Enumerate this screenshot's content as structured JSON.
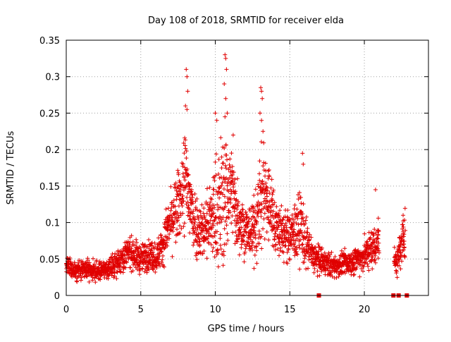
{
  "chart_data": {
    "type": "scatter",
    "title": "Day 108 of 2018, SRMTID for receiver elda",
    "xlabel": "GPS time / hours",
    "ylabel": "SRMTID / TECUs",
    "xlim": [
      0,
      24.3
    ],
    "ylim": [
      0,
      0.35
    ],
    "x_ticks": [
      0,
      5,
      10,
      15,
      20
    ],
    "y_ticks": [
      0,
      0.05,
      0.1,
      0.15,
      0.2,
      0.25,
      0.3,
      0.35
    ],
    "x_tick_labels": [
      "0",
      "5",
      "10",
      "15",
      "20"
    ],
    "y_tick_labels": [
      "0",
      "0.05",
      "0.1",
      "0.15",
      "0.2",
      "0.25",
      "0.3",
      "0.35"
    ],
    "grid": true,
    "marker": "+",
    "color": "#e00000",
    "series": [
      {
        "name": "SRMTID",
        "x": [
          0.0,
          0.25,
          0.5,
          0.75,
          1.0,
          1.25,
          1.5,
          1.75,
          2.0,
          2.25,
          2.5,
          2.75,
          3.0,
          3.25,
          3.5,
          3.75,
          4.0,
          4.25,
          4.5,
          4.75,
          5.0,
          5.25,
          5.5,
          5.75,
          6.0,
          6.25,
          6.5,
          6.75,
          7.0,
          7.25,
          7.5,
          7.75,
          8.0,
          8.25,
          8.5,
          8.75,
          9.0,
          9.25,
          9.5,
          9.75,
          10.0,
          10.25,
          10.5,
          10.75,
          11.0,
          11.25,
          11.5,
          11.75,
          12.0,
          12.25,
          12.5,
          12.75,
          13.0,
          13.25,
          13.5,
          13.75,
          14.0,
          14.25,
          14.5,
          14.75,
          15.0,
          15.25,
          15.5,
          15.75,
          16.0,
          16.25,
          16.5,
          16.75,
          17.0,
          17.25,
          17.5,
          17.75,
          18.0,
          18.25,
          18.5,
          18.75,
          19.0,
          19.25,
          19.5,
          19.75,
          20.0,
          20.25,
          20.5,
          20.75,
          21.0,
          22.0,
          22.25,
          22.5,
          22.75
        ],
        "y": [
          0.04,
          0.038,
          0.035,
          0.036,
          0.034,
          0.035,
          0.036,
          0.033,
          0.032,
          0.034,
          0.035,
          0.036,
          0.038,
          0.042,
          0.048,
          0.052,
          0.055,
          0.06,
          0.058,
          0.052,
          0.05,
          0.053,
          0.056,
          0.055,
          0.052,
          0.06,
          0.07,
          0.09,
          0.1,
          0.11,
          0.12,
          0.14,
          0.16,
          0.13,
          0.11,
          0.095,
          0.09,
          0.092,
          0.1,
          0.105,
          0.11,
          0.12,
          0.13,
          0.14,
          0.15,
          0.13,
          0.11,
          0.1,
          0.09,
          0.085,
          0.09,
          0.1,
          0.12,
          0.15,
          0.13,
          0.12,
          0.1,
          0.09,
          0.085,
          0.08,
          0.082,
          0.085,
          0.09,
          0.1,
          0.075,
          0.065,
          0.055,
          0.05,
          0.048,
          0.045,
          0.043,
          0.042,
          0.04,
          0.041,
          0.043,
          0.044,
          0.045,
          0.047,
          0.05,
          0.052,
          0.055,
          0.06,
          0.065,
          0.07,
          0.08,
          0.045,
          0.05,
          0.07,
          0.09
        ],
        "y_spread": [
          0.01,
          0.01,
          0.01,
          0.01,
          0.01,
          0.01,
          0.01,
          0.01,
          0.01,
          0.01,
          0.01,
          0.01,
          0.012,
          0.013,
          0.015,
          0.016,
          0.016,
          0.017,
          0.017,
          0.016,
          0.016,
          0.016,
          0.017,
          0.017,
          0.017,
          0.018,
          0.02,
          0.025,
          0.03,
          0.035,
          0.04,
          0.045,
          0.06,
          0.05,
          0.04,
          0.035,
          0.03,
          0.035,
          0.04,
          0.045,
          0.06,
          0.07,
          0.075,
          0.07,
          0.05,
          0.045,
          0.04,
          0.035,
          0.03,
          0.028,
          0.032,
          0.04,
          0.055,
          0.06,
          0.05,
          0.04,
          0.035,
          0.03,
          0.028,
          0.027,
          0.028,
          0.03,
          0.035,
          0.04,
          0.03,
          0.022,
          0.02,
          0.018,
          0.015,
          0.014,
          0.013,
          0.013,
          0.012,
          0.012,
          0.013,
          0.013,
          0.013,
          0.014,
          0.015,
          0.016,
          0.018,
          0.02,
          0.022,
          0.025,
          0.03,
          0.015,
          0.018,
          0.025,
          0.03
        ],
        "peaks": [
          {
            "x": 8.05,
            "y": 0.31
          },
          {
            "x": 8.1,
            "y": 0.3
          },
          {
            "x": 8.15,
            "y": 0.28
          },
          {
            "x": 8.0,
            "y": 0.26
          },
          {
            "x": 8.1,
            "y": 0.255
          },
          {
            "x": 10.0,
            "y": 0.25
          },
          {
            "x": 10.1,
            "y": 0.24
          },
          {
            "x": 10.65,
            "y": 0.33
          },
          {
            "x": 10.7,
            "y": 0.325
          },
          {
            "x": 10.75,
            "y": 0.31
          },
          {
            "x": 10.6,
            "y": 0.29
          },
          {
            "x": 10.7,
            "y": 0.27
          },
          {
            "x": 10.8,
            "y": 0.25
          },
          {
            "x": 10.65,
            "y": 0.245
          },
          {
            "x": 11.2,
            "y": 0.22
          },
          {
            "x": 13.05,
            "y": 0.285
          },
          {
            "x": 13.1,
            "y": 0.28
          },
          {
            "x": 13.15,
            "y": 0.27
          },
          {
            "x": 13.0,
            "y": 0.25
          },
          {
            "x": 13.1,
            "y": 0.24
          },
          {
            "x": 13.2,
            "y": 0.225
          },
          {
            "x": 15.85,
            "y": 0.195
          },
          {
            "x": 15.9,
            "y": 0.18
          },
          {
            "x": 20.75,
            "y": 0.145
          },
          {
            "x": 22.6,
            "y": 0.11
          }
        ],
        "zero_markers_x": [
          16.95,
          21.95,
          22.3,
          22.85
        ]
      }
    ]
  }
}
